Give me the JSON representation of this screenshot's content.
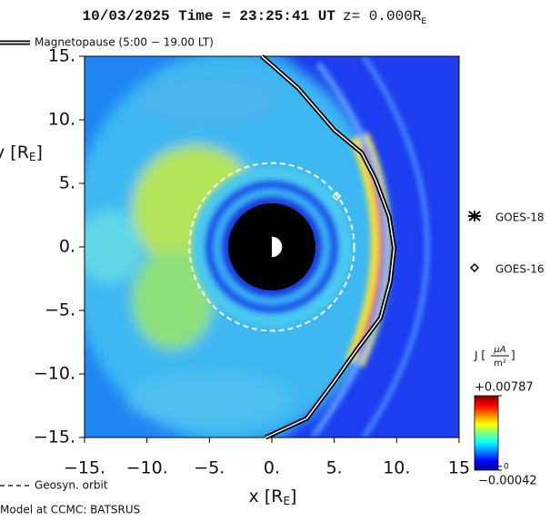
{
  "chart_data": {
    "type": "line",
    "title": [
      "10/03/2025 Time = 23:25:41 UT",
      "z= 0.000R",
      "E"
    ],
    "xlabel": [
      "x [R",
      "E",
      "]"
    ],
    "ylabel": [
      "y [R",
      "E",
      "]"
    ],
    "xlim": [
      -15,
      15
    ],
    "ylim": [
      -15,
      15
    ],
    "xticks": [
      {
        "value": -15,
        "label": "−15."
      },
      {
        "value": -10,
        "label": "−10."
      },
      {
        "value": -5,
        "label": "−5."
      },
      {
        "value": 0,
        "label": "0."
      },
      {
        "value": 5,
        "label": "5."
      },
      {
        "value": 10,
        "label": "10."
      },
      15
    ],
    "yticks": [
      {
        "value": 15,
        "label": "15."
      },
      {
        "value": 10,
        "label": "10."
      },
      {
        "value": 5,
        "label": "5."
      },
      {
        "value": 0,
        "label": "0."
      },
      {
        "value": -5,
        "label": "−5."
      },
      {
        "value": -10,
        "label": "−10."
      },
      {
        "value": -15,
        "label": "−15."
      }
    ],
    "series": [
      {
        "name": "Magnetopause (5:00 − 19.00 LT)",
        "color": "#000000",
        "x": [
          -0.8,
          2.1,
          5.0,
          7.2,
          8.3,
          9.4,
          9.8,
          9.5,
          8.7,
          6.8,
          5.0,
          2.8,
          -0.5
        ],
        "y": [
          15.0,
          12.5,
          9.2,
          7.4,
          5.3,
          2.4,
          -0.1,
          -2.7,
          -5.6,
          -8.1,
          -10.6,
          -13.5,
          -15.0
        ]
      }
    ],
    "geosync": {
      "name": "Geosyn. orbit",
      "radius": 6.6
    },
    "satellites": [
      {
        "name": "GOES-18"
      },
      {
        "name": "GOES-16",
        "x": 5.2,
        "y": 4.0
      }
    ],
    "colorbar": {
      "label": [
        "J [",
        "μA",
        "m²",
        "]"
      ],
      "lim": [
        -0.00042,
        0.00787
      ],
      "ticks": [
        {
          "value": 0.00787,
          "label": "+0.00787"
        },
        0,
        {
          "value": -0.00042,
          "label": "−0.00042"
        }
      ]
    },
    "footer": "Model at CCMC: BATSRUS"
  }
}
